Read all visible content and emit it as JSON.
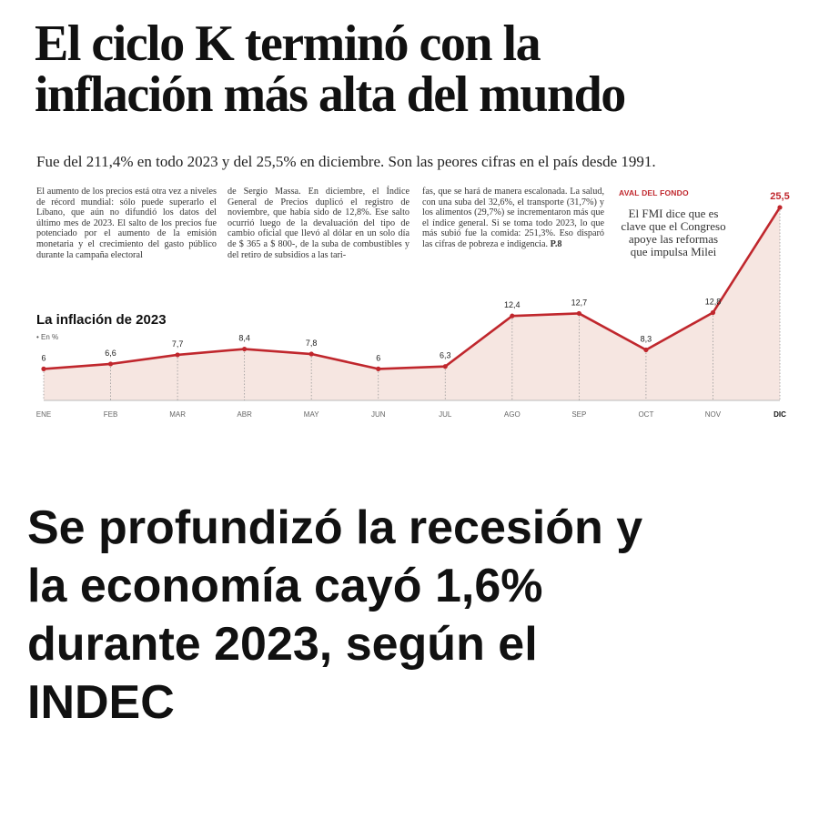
{
  "headline": {
    "line1": "El ciclo K terminó con la",
    "line2": "inflación más alta del mundo"
  },
  "subhead": "Fue del 211,4% en todo 2023 y del 25,5% en diciembre. Son las peores cifras en el país desde 1991.",
  "body": {
    "col1": "El aumento de los precios está otra vez a niveles de récord mundial: sólo puede superarlo el Líbano, que aún no difundió los datos del último mes de 2023. El salto de los precios fue potenciado por el aumento de la emisión monetaria y el crecimiento del gasto público durante la campaña electoral",
    "col2": "de Sergio Massa. En diciembre, el Índice General de Precios duplicó el registro de noviembre, que había sido de 12,8%. Ese salto ocurrió luego de la devaluación del tipo de cambio oficial que llevó al dólar en un solo día de $ 365 a $ 800-, de la suba de combustibles y del retiro de subsidios a las tari-",
    "col3": "fas, que se hará de manera escalonada. La salud, con una suba del 32,6%, el transporte (31,7%) y los alimentos (29,7%) se incrementaron más que el índice general. Si se toma todo 2023, lo que más subió fue la comida: 251,3%. Eso disparó las cifras de pobreza e indigencia.",
    "col3_ref": "P.8"
  },
  "sidebar": {
    "kicker": "AVAL DEL FONDO",
    "text": "El FMI dice que es clave que el Congreso apoye las reformas que impulsa Milei"
  },
  "chart_data": {
    "type": "area",
    "title": "La inflación de 2023",
    "unit_note": "• En %",
    "categories": [
      "ENE",
      "FEB",
      "MAR",
      "ABR",
      "MAY",
      "JUN",
      "JUL",
      "AGO",
      "SEP",
      "OCT",
      "NOV",
      "DIC"
    ],
    "values": [
      6,
      6.6,
      7.7,
      8.4,
      7.8,
      6,
      6.3,
      12.4,
      12.7,
      8.3,
      12.8,
      25.5
    ],
    "value_labels": [
      "6",
      "6,6",
      "7,7",
      "8,4",
      "7,8",
      "6",
      "6,3",
      "12,4",
      "12,7",
      "8,3",
      "12,8",
      "25,5"
    ],
    "line_color": "#c0272d",
    "fill_color": "#f6e6e1",
    "grid": false
  },
  "bottom_headline": {
    "line1": "Se profundizó la recesión y",
    "line2": "la economía cayó 1,6%",
    "line3": "durante 2023, según el",
    "line4": "INDEC"
  }
}
